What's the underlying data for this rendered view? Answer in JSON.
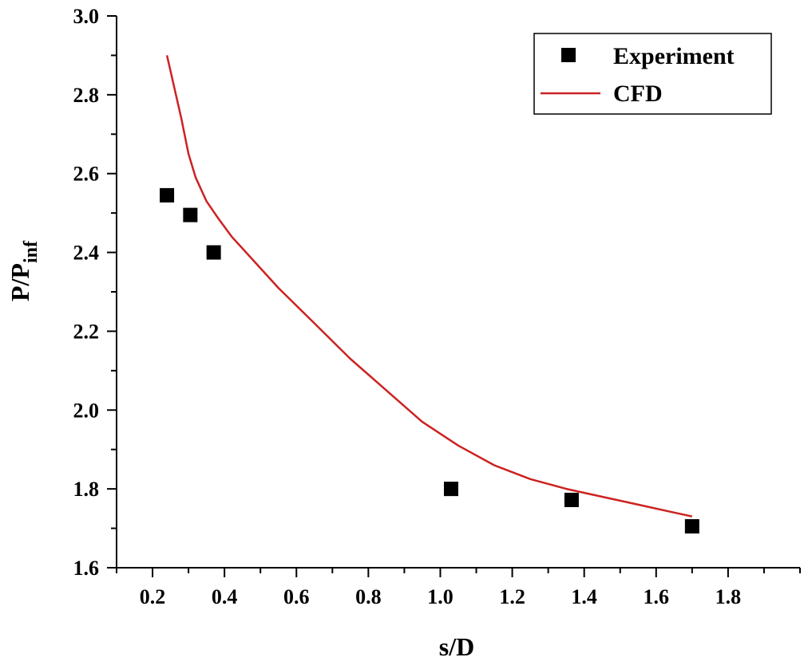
{
  "chart_data": {
    "type": "scatter",
    "xlabel": "s/D",
    "ylabel_main": "P/P",
    "ylabel_sub": "inf",
    "xlim": [
      0.1,
      2.0
    ],
    "ylim": [
      1.6,
      3.0
    ],
    "xticks": [
      0.2,
      0.4,
      0.6,
      0.8,
      1.0,
      1.2,
      1.4,
      1.6,
      1.8
    ],
    "xtick_labels": [
      "0.2",
      "0.4",
      "0.6",
      "0.8",
      "1.0",
      "1.2",
      "1.4",
      "1.6",
      "1.8"
    ],
    "yticks": [
      1.6,
      1.8,
      2.0,
      2.2,
      2.4,
      2.6,
      2.8,
      3.0
    ],
    "ytick_labels": [
      "1.6",
      "1.8",
      "2.0",
      "2.2",
      "2.4",
      "2.6",
      "2.8",
      "3.0"
    ],
    "grid": false,
    "legend_position": "top-right",
    "series": [
      {
        "name": "Experiment",
        "kind": "scatter",
        "marker": "square",
        "color": "#000000",
        "x": [
          0.24,
          0.305,
          0.37,
          1.03,
          1.365,
          1.7
        ],
        "y": [
          2.545,
          2.495,
          2.4,
          1.8,
          1.772,
          1.705
        ]
      },
      {
        "name": "CFD",
        "kind": "line",
        "color": "#cc2222",
        "x": [
          0.24,
          0.26,
          0.28,
          0.3,
          0.32,
          0.35,
          0.38,
          0.42,
          0.47,
          0.55,
          0.65,
          0.75,
          0.85,
          0.95,
          1.05,
          1.15,
          1.25,
          1.35,
          1.45,
          1.55,
          1.65,
          1.7
        ],
        "y": [
          2.9,
          2.82,
          2.74,
          2.65,
          2.59,
          2.53,
          2.49,
          2.44,
          2.39,
          2.31,
          2.22,
          2.13,
          2.05,
          1.97,
          1.91,
          1.86,
          1.825,
          1.8,
          1.78,
          1.76,
          1.74,
          1.73
        ]
      }
    ]
  }
}
